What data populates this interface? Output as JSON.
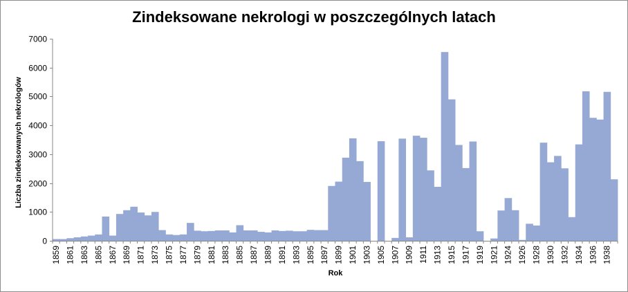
{
  "chart_data": {
    "type": "bar",
    "title": "Zindeksowane nekrologi w poszczególnych latach",
    "xlabel": "Rok",
    "ylabel": "Liczba zindeksowanych nekrologów",
    "ylim": [
      0,
      7000
    ],
    "yticks": [
      0,
      1000,
      2000,
      3000,
      4000,
      5000,
      6000,
      7000
    ],
    "grid": false,
    "color": "#95a9d4",
    "categories": [
      "1859",
      "1860",
      "1861",
      "1862",
      "1863",
      "1864",
      "1865",
      "1866",
      "1867",
      "1868",
      "1869",
      "1870",
      "1871",
      "1872",
      "1873",
      "1874",
      "1875",
      "1876",
      "1877",
      "1878",
      "1879",
      "1880",
      "1881",
      "1882",
      "1883",
      "1884",
      "1885",
      "1886",
      "1887",
      "1888",
      "1889",
      "1890",
      "1891",
      "1892",
      "1893",
      "1894",
      "1895",
      "1896",
      "1897",
      "1898",
      "1899",
      "1900",
      "1901",
      "1902",
      "1903",
      "1904",
      "1905",
      "1906",
      "1907",
      "1908",
      "1909",
      "1910",
      "1911",
      "1912",
      "1913",
      "1914",
      "1915",
      "1916",
      "1917",
      "1918",
      "1919",
      "1920",
      "1921",
      "1922",
      "1924",
      "1925",
      "1926",
      "1927",
      "1928",
      "1929",
      "1930",
      "1931",
      "1932",
      "1933",
      "1934",
      "1935",
      "1936",
      "1937",
      "1938",
      "1939"
    ],
    "tick_labels": [
      "1859",
      "1861",
      "1863",
      "1865",
      "1867",
      "1869",
      "1871",
      "1873",
      "1875",
      "1877",
      "1879",
      "1881",
      "1883",
      "1885",
      "1887",
      "1889",
      "1891",
      "1893",
      "1895",
      "1897",
      "1899",
      "1901",
      "1903",
      "1905",
      "1907",
      "1909",
      "1911",
      "1913",
      "1915",
      "1917",
      "1919",
      "1921",
      "1924",
      "1926",
      "1928",
      "1930",
      "1932",
      "1934",
      "1936",
      "1938"
    ],
    "values": [
      60,
      60,
      90,
      120,
      150,
      180,
      220,
      840,
      180,
      930,
      1060,
      1180,
      980,
      880,
      1000,
      370,
      220,
      200,
      220,
      620,
      350,
      330,
      340,
      360,
      360,
      290,
      540,
      360,
      360,
      310,
      290,
      360,
      340,
      350,
      330,
      330,
      380,
      370,
      370,
      1900,
      2050,
      2880,
      3550,
      2760,
      2040,
      0,
      3450,
      0,
      100,
      3540,
      120,
      3640,
      3570,
      2440,
      1870,
      6540,
      4900,
      3320,
      2520,
      3440,
      330,
      0,
      80,
      1050,
      1480,
      1060,
      30,
      590,
      530,
      3400,
      2720,
      2940,
      2510,
      820,
      3340,
      5180,
      4260,
      4200,
      5160,
      2130
    ]
  }
}
